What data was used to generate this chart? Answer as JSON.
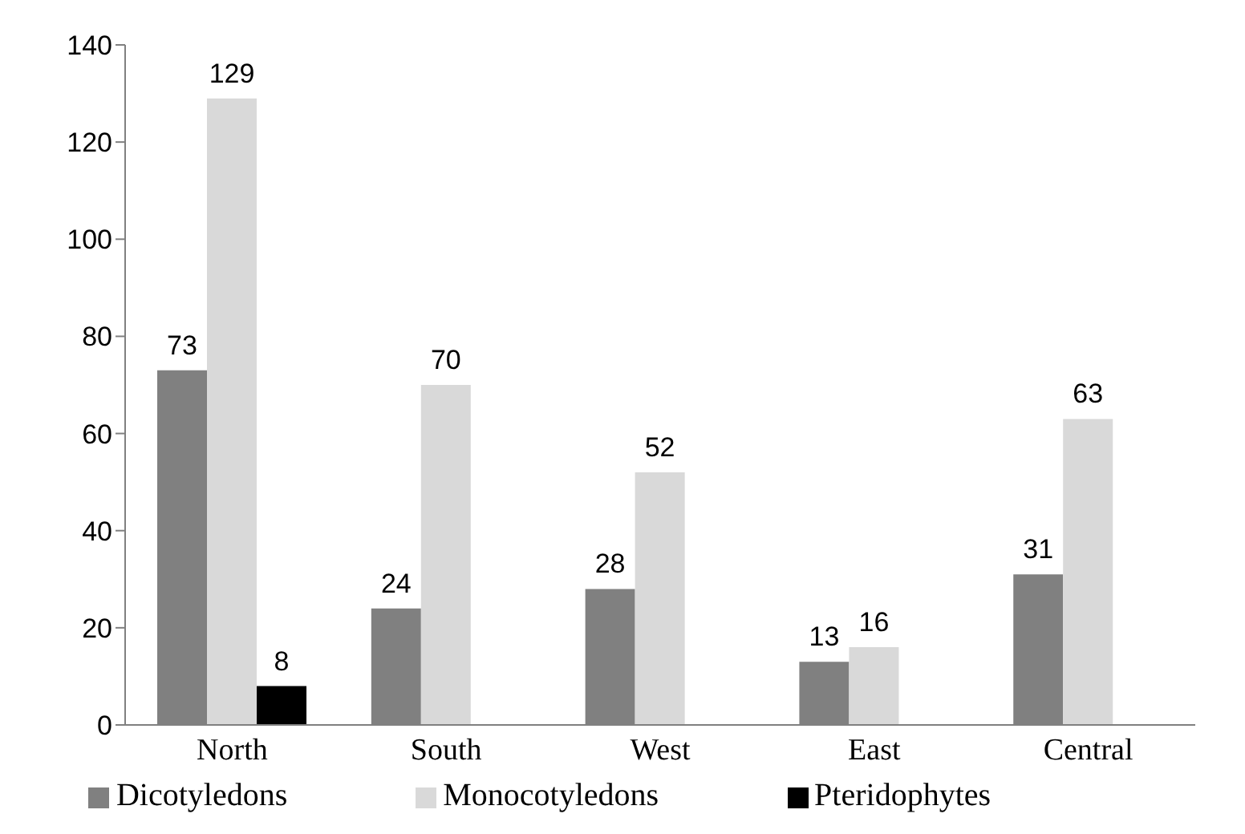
{
  "chart_data": {
    "type": "bar",
    "categories": [
      "North",
      "South",
      "West",
      "East",
      "Central"
    ],
    "series": [
      {
        "name": "Dicotyledons",
        "color": "#808080",
        "values": [
          73,
          24,
          28,
          13,
          31
        ]
      },
      {
        "name": "Monocotyledons",
        "color": "#d9d9d9",
        "values": [
          129,
          70,
          52,
          16,
          63
        ]
      },
      {
        "name": "Pteridophytes",
        "color": "#000000",
        "values": [
          8,
          null,
          null,
          null,
          null
        ]
      }
    ],
    "ylim": [
      0,
      140
    ],
    "yticks": [
      0,
      20,
      40,
      60,
      80,
      100,
      120,
      140
    ],
    "grid": false,
    "legend": "bottom",
    "data_labels": true
  }
}
